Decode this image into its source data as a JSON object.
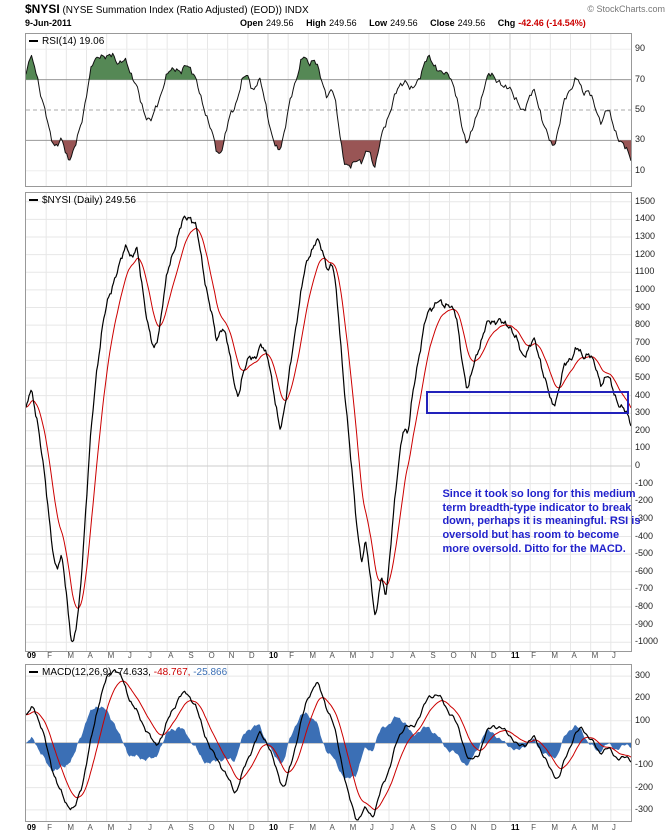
{
  "header": {
    "symbol": "$NYSI",
    "title_rest": "(NYSE Summation Index (Ratio Adjusted) (EOD)) INDX",
    "copyright": "© StockCharts.com",
    "date": "9-Jun-2011",
    "ohlc": [
      {
        "label": "Open",
        "value": "249.56"
      },
      {
        "label": "High",
        "value": "249.56"
      },
      {
        "label": "Low",
        "value": "249.56"
      },
      {
        "label": "Close",
        "value": "249.56"
      }
    ],
    "chg_label": "Chg",
    "chg_value": "-42.46 (-14.54%)"
  },
  "panels": {
    "rsi": {
      "legend": "RSI(14) 19.06"
    },
    "price": {
      "legend": "$NYSI (Daily) 249.56"
    },
    "macd": {
      "name": "MACD(12,26,9)",
      "v1": "-74.633,",
      "v2": "-48.767,",
      "v3": "-25.866"
    }
  },
  "annotation": {
    "text": "Since it took so long for this medium term breadth-type indicator to break down, perhaps it is meaningful. RSI is oversold but has room to become more oversold. Ditto for the MACD."
  },
  "x_axis": {
    "labels": [
      "09",
      "F",
      "M",
      "A",
      "M",
      "J",
      "J",
      "A",
      "S",
      "O",
      "N",
      "D",
      "10",
      "F",
      "M",
      "A",
      "M",
      "J",
      "J",
      "A",
      "S",
      "O",
      "N",
      "D",
      "11",
      "F",
      "M",
      "A",
      "M",
      "J"
    ],
    "years": [
      "09",
      "10",
      "11"
    ]
  },
  "colors": {
    "price_line": "#000000",
    "overlay_line": "#cc0000",
    "rsi_line": "#111111",
    "overbought_fill": "#558855",
    "oversold_fill": "#995555",
    "macd_line": "#000000",
    "signal_line": "#cc0000",
    "hist_fill": "#3b6fb5",
    "annotation_blue": "#2222cc",
    "chg_red": "#cc0000",
    "grid_light": "#e7e7e7",
    "grid_dark": "#999999"
  },
  "chart_data": [
    {
      "type": "line",
      "panel": "rsi",
      "title": "RSI(14)",
      "current": 19.06,
      "x_unit": "months since Jan 2009",
      "xlim": [
        0,
        30
      ],
      "ylim": [
        0,
        100
      ],
      "ticks": [
        90,
        70,
        50,
        30,
        10
      ],
      "overbought": 70,
      "oversold": 30,
      "midline": 50,
      "points": [
        [
          0,
          72
        ],
        [
          0.2,
          85
        ],
        [
          0.5,
          78
        ],
        [
          0.8,
          55
        ],
        [
          1.2,
          35
        ],
        [
          1.5,
          25
        ],
        [
          1.8,
          30
        ],
        [
          2.1,
          18
        ],
        [
          2.4,
          22
        ],
        [
          2.7,
          40
        ],
        [
          3.0,
          60
        ],
        [
          3.3,
          80
        ],
        [
          3.6,
          88
        ],
        [
          4.0,
          82
        ],
        [
          4.3,
          90
        ],
        [
          4.6,
          78
        ],
        [
          5.0,
          84
        ],
        [
          5.3,
          70
        ],
        [
          5.6,
          60
        ],
        [
          5.9,
          48
        ],
        [
          6.2,
          40
        ],
        [
          6.5,
          55
        ],
        [
          6.8,
          65
        ],
        [
          7.1,
          75
        ],
        [
          7.4,
          80
        ],
        [
          7.7,
          72
        ],
        [
          8.0,
          82
        ],
        [
          8.3,
          75
        ],
        [
          8.6,
          60
        ],
        [
          8.9,
          50
        ],
        [
          9.2,
          35
        ],
        [
          9.5,
          20
        ],
        [
          9.8,
          28
        ],
        [
          10.1,
          45
        ],
        [
          10.4,
          55
        ],
        [
          10.7,
          68
        ],
        [
          11.0,
          74
        ],
        [
          11.3,
          62
        ],
        [
          11.6,
          70
        ],
        [
          11.9,
          55
        ],
        [
          12.2,
          30
        ],
        [
          12.5,
          22
        ],
        [
          12.8,
          35
        ],
        [
          13.1,
          55
        ],
        [
          13.4,
          72
        ],
        [
          13.7,
          85
        ],
        [
          14.0,
          80
        ],
        [
          14.3,
          86
        ],
        [
          14.6,
          70
        ],
        [
          14.9,
          60
        ],
        [
          15.2,
          65
        ],
        [
          15.5,
          40
        ],
        [
          15.8,
          15
        ],
        [
          16.1,
          10
        ],
        [
          16.4,
          20
        ],
        [
          16.7,
          15
        ],
        [
          17.0,
          25
        ],
        [
          17.3,
          12
        ],
        [
          17.6,
          30
        ],
        [
          17.9,
          45
        ],
        [
          18.2,
          55
        ],
        [
          18.5,
          65
        ],
        [
          18.8,
          72
        ],
        [
          19.1,
          60
        ],
        [
          19.4,
          70
        ],
        [
          19.7,
          78
        ],
        [
          20.0,
          85
        ],
        [
          20.3,
          80
        ],
        [
          20.6,
          72
        ],
        [
          21.0,
          76
        ],
        [
          21.3,
          60
        ],
        [
          21.6,
          40
        ],
        [
          21.9,
          28
        ],
        [
          22.2,
          38
        ],
        [
          22.5,
          55
        ],
        [
          22.8,
          68
        ],
        [
          23.1,
          75
        ],
        [
          23.4,
          70
        ],
        [
          23.7,
          62
        ],
        [
          24.0,
          68
        ],
        [
          24.3,
          55
        ],
        [
          24.6,
          48
        ],
        [
          24.9,
          58
        ],
        [
          25.2,
          62
        ],
        [
          25.5,
          50
        ],
        [
          25.8,
          35
        ],
        [
          26.1,
          24
        ],
        [
          26.4,
          38
        ],
        [
          26.7,
          55
        ],
        [
          27.0,
          65
        ],
        [
          27.3,
          72
        ],
        [
          27.6,
          60
        ],
        [
          27.9,
          66
        ],
        [
          28.2,
          50
        ],
        [
          28.5,
          42
        ],
        [
          28.8,
          52
        ],
        [
          29.1,
          40
        ],
        [
          29.4,
          32
        ],
        [
          29.7,
          24
        ],
        [
          30,
          19.06
        ]
      ]
    },
    {
      "type": "line",
      "panel": "price",
      "title": "$NYSI (Daily)",
      "current": 249.56,
      "overlay": "red smoothing (EMA) line",
      "x_unit": "months since Jan 2009",
      "xlim": [
        0,
        30
      ],
      "ylim": [
        -1050,
        1550
      ],
      "tick_min": -1000,
      "tick_max": 1500,
      "tick_step": 100,
      "support_box": {
        "x0": 19.9,
        "x1": 29.95,
        "y0": 290,
        "y1": 420
      },
      "note_pos": {
        "x": 20.7,
        "y": -130
      },
      "points": [
        [
          0,
          320
        ],
        [
          0.25,
          430
        ],
        [
          0.6,
          250
        ],
        [
          0.9,
          -50
        ],
        [
          1.2,
          -350
        ],
        [
          1.5,
          -600
        ],
        [
          1.8,
          -520
        ],
        [
          2.05,
          -760
        ],
        [
          2.3,
          -1050
        ],
        [
          2.6,
          -850
        ],
        [
          2.9,
          -350
        ],
        [
          3.2,
          150
        ],
        [
          3.5,
          550
        ],
        [
          3.8,
          800
        ],
        [
          4.1,
          950
        ],
        [
          4.4,
          1080
        ],
        [
          4.7,
          1150
        ],
        [
          5.0,
          1270
        ],
        [
          5.25,
          1180
        ],
        [
          5.5,
          1230
        ],
        [
          5.8,
          1000
        ],
        [
          6.1,
          760
        ],
        [
          6.35,
          640
        ],
        [
          6.6,
          780
        ],
        [
          6.9,
          1020
        ],
        [
          7.2,
          1180
        ],
        [
          7.5,
          1300
        ],
        [
          7.8,
          1390
        ],
        [
          8.1,
          1430
        ],
        [
          8.4,
          1370
        ],
        [
          8.7,
          1180
        ],
        [
          9.0,
          980
        ],
        [
          9.2,
          860
        ],
        [
          9.45,
          700
        ],
        [
          9.7,
          810
        ],
        [
          9.9,
          740
        ],
        [
          10.2,
          560
        ],
        [
          10.5,
          390
        ],
        [
          10.8,
          520
        ],
        [
          11.1,
          650
        ],
        [
          11.4,
          600
        ],
        [
          11.7,
          690
        ],
        [
          12.0,
          640
        ],
        [
          12.3,
          380
        ],
        [
          12.6,
          210
        ],
        [
          12.9,
          380
        ],
        [
          13.2,
          640
        ],
        [
          13.5,
          900
        ],
        [
          13.8,
          1090
        ],
        [
          14.1,
          1220
        ],
        [
          14.4,
          1290
        ],
        [
          14.7,
          1210
        ],
        [
          15.0,
          1120
        ],
        [
          15.2,
          1160
        ],
        [
          15.5,
          850
        ],
        [
          15.8,
          430
        ],
        [
          16.1,
          30
        ],
        [
          16.4,
          -320
        ],
        [
          16.65,
          -560
        ],
        [
          16.85,
          -430
        ],
        [
          17.1,
          -650
        ],
        [
          17.35,
          -870
        ],
        [
          17.6,
          -640
        ],
        [
          17.85,
          -740
        ],
        [
          18.1,
          -420
        ],
        [
          18.4,
          -80
        ],
        [
          18.7,
          240
        ],
        [
          18.95,
          180
        ],
        [
          19.2,
          420
        ],
        [
          19.5,
          650
        ],
        [
          19.8,
          820
        ],
        [
          20.1,
          900
        ],
        [
          20.4,
          950
        ],
        [
          20.7,
          890
        ],
        [
          21.0,
          940
        ],
        [
          21.3,
          860
        ],
        [
          21.6,
          620
        ],
        [
          21.9,
          430
        ],
        [
          22.2,
          560
        ],
        [
          22.5,
          700
        ],
        [
          22.8,
          790
        ],
        [
          23.1,
          820
        ],
        [
          23.4,
          840
        ],
        [
          23.7,
          790
        ],
        [
          24.0,
          810
        ],
        [
          24.3,
          720
        ],
        [
          24.6,
          620
        ],
        [
          24.9,
          670
        ],
        [
          25.2,
          710
        ],
        [
          25.5,
          610
        ],
        [
          25.8,
          460
        ],
        [
          26.1,
          330
        ],
        [
          26.4,
          430
        ],
        [
          26.7,
          560
        ],
        [
          27.0,
          620
        ],
        [
          27.3,
          670
        ],
        [
          27.6,
          610
        ],
        [
          27.9,
          660
        ],
        [
          28.2,
          560
        ],
        [
          28.5,
          470
        ],
        [
          28.8,
          520
        ],
        [
          29.1,
          430
        ],
        [
          29.4,
          360
        ],
        [
          29.7,
          300
        ],
        [
          30,
          249.56
        ]
      ]
    },
    {
      "type": "line+histogram",
      "panel": "macd",
      "title": "MACD(12,26,9)",
      "values": {
        "macd": -74.633,
        "signal": -48.767,
        "histogram": -25.866
      },
      "x_unit": "months since Jan 2009",
      "xlim": [
        0,
        30
      ],
      "ylim": [
        -350,
        350
      ],
      "tick_min": -300,
      "tick_max": 300,
      "tick_step": 100,
      "points": [
        [
          0,
          120
        ],
        [
          0.4,
          165
        ],
        [
          0.8,
          60
        ],
        [
          1.2,
          -80
        ],
        [
          1.6,
          -200
        ],
        [
          2.0,
          -270
        ],
        [
          2.4,
          -305
        ],
        [
          2.8,
          -180
        ],
        [
          3.2,
          0
        ],
        [
          3.6,
          180
        ],
        [
          4.0,
          290
        ],
        [
          4.4,
          340
        ],
        [
          4.8,
          280
        ],
        [
          5.2,
          185
        ],
        [
          5.6,
          120
        ],
        [
          6.0,
          55
        ],
        [
          6.4,
          -15
        ],
        [
          6.8,
          40
        ],
        [
          7.2,
          140
        ],
        [
          7.6,
          205
        ],
        [
          8.0,
          230
        ],
        [
          8.4,
          165
        ],
        [
          8.8,
          60
        ],
        [
          9.2,
          -40
        ],
        [
          9.6,
          -85
        ],
        [
          10.0,
          -160
        ],
        [
          10.4,
          -225
        ],
        [
          10.8,
          -120
        ],
        [
          11.2,
          -25
        ],
        [
          11.6,
          45
        ],
        [
          12.0,
          0
        ],
        [
          12.4,
          -120
        ],
        [
          12.8,
          -205
        ],
        [
          13.2,
          -80
        ],
        [
          13.6,
          85
        ],
        [
          14.0,
          205
        ],
        [
          14.4,
          280
        ],
        [
          14.8,
          185
        ],
        [
          15.2,
          100
        ],
        [
          15.6,
          -60
        ],
        [
          16.0,
          -240
        ],
        [
          16.4,
          -350
        ],
        [
          16.8,
          -295
        ],
        [
          17.2,
          -330
        ],
        [
          17.6,
          -215
        ],
        [
          18.0,
          -115
        ],
        [
          18.4,
          5
        ],
        [
          18.8,
          85
        ],
        [
          19.2,
          60
        ],
        [
          19.6,
          145
        ],
        [
          20.0,
          205
        ],
        [
          20.4,
          225
        ],
        [
          20.8,
          160
        ],
        [
          21.2,
          120
        ],
        [
          21.6,
          20
        ],
        [
          22.0,
          -85
        ],
        [
          22.4,
          -60
        ],
        [
          22.8,
          40
        ],
        [
          23.2,
          85
        ],
        [
          23.6,
          60
        ],
        [
          24.0,
          40
        ],
        [
          24.4,
          -20
        ],
        [
          24.8,
          0
        ],
        [
          25.2,
          25
        ],
        [
          25.6,
          -40
        ],
        [
          26.0,
          -125
        ],
        [
          26.4,
          -160
        ],
        [
          26.8,
          -60
        ],
        [
          27.2,
          40
        ],
        [
          27.6,
          65
        ],
        [
          28.0,
          20
        ],
        [
          28.4,
          -45
        ],
        [
          28.8,
          -20
        ],
        [
          29.2,
          -60
        ],
        [
          29.6,
          -68
        ],
        [
          30,
          -74.633
        ]
      ]
    }
  ]
}
